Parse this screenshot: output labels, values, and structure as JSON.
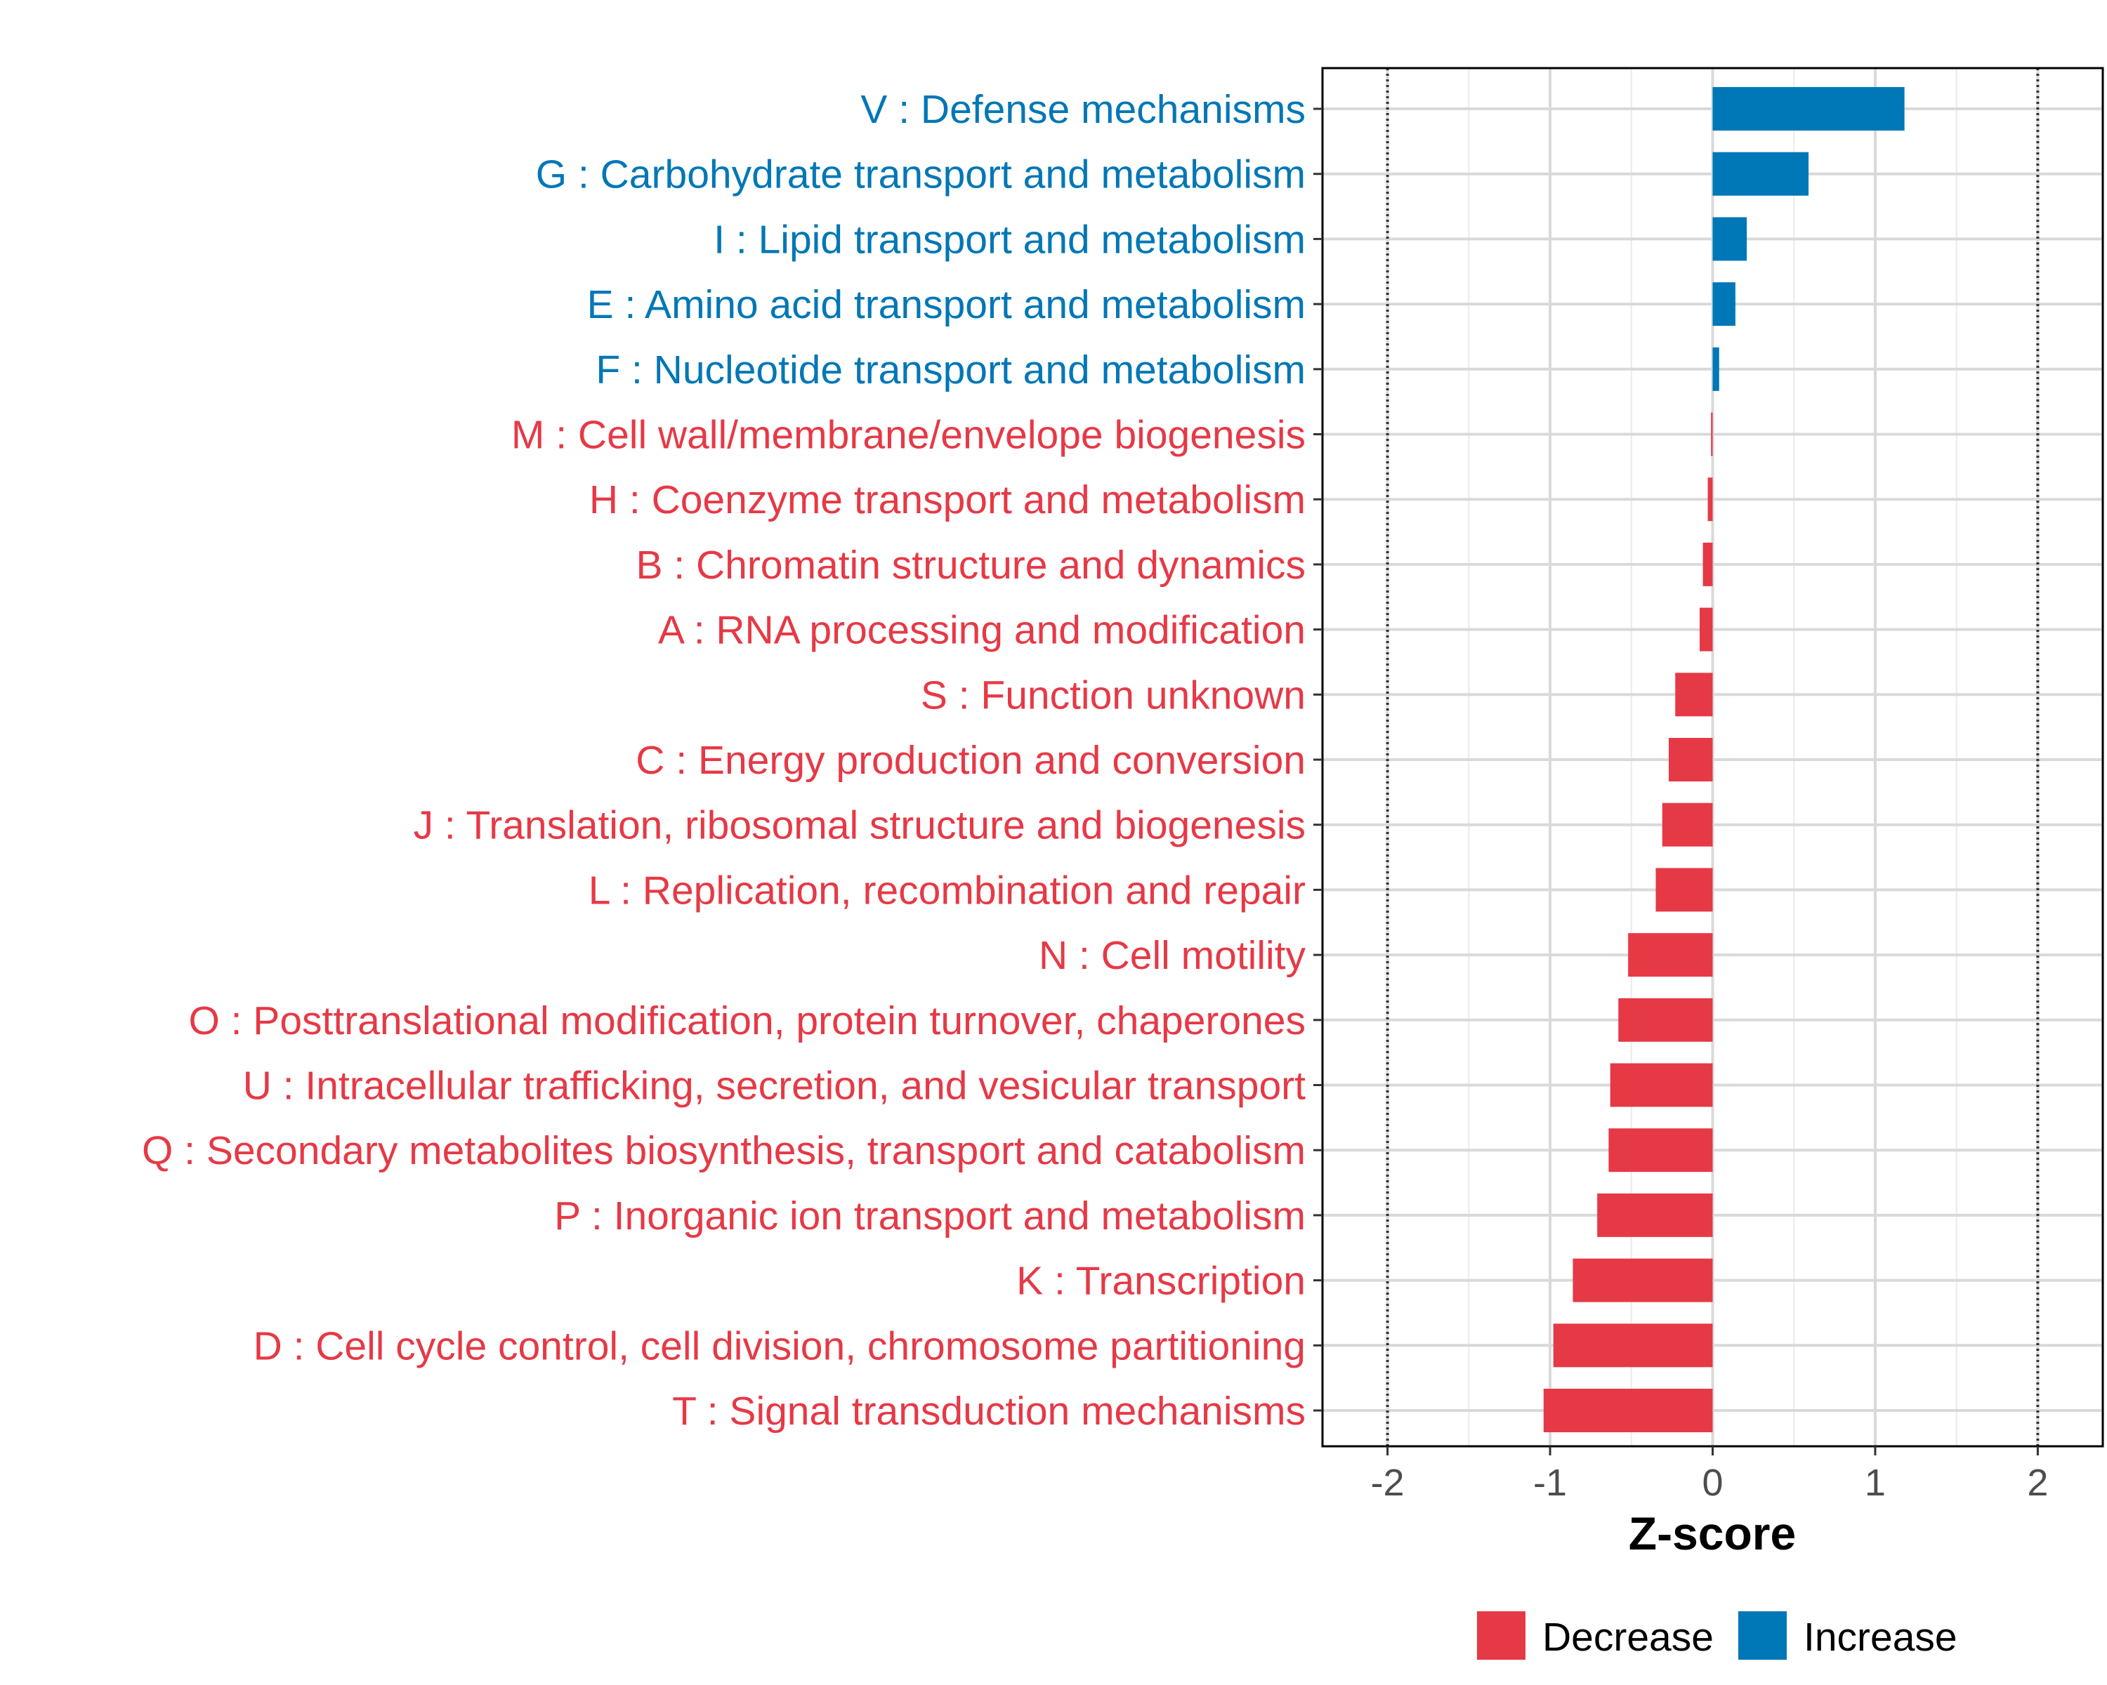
{
  "chart_data": {
    "type": "bar",
    "orientation": "horizontal",
    "title": "",
    "xlabel": "Z-score",
    "ylabel": "",
    "xlim": [
      -2.4,
      2.4
    ],
    "xticks": [
      -2,
      -1,
      0,
      1,
      2
    ],
    "xtick_labels": [
      "-2",
      "-1",
      "0",
      "1",
      "2"
    ],
    "reference_lines": [
      -2,
      2
    ],
    "grid": true,
    "categories": [
      "V : Defense mechanisms",
      "G : Carbohydrate transport and metabolism",
      "I : Lipid transport and metabolism",
      "E : Amino acid transport and metabolism",
      "F : Nucleotide transport and metabolism",
      "M : Cell wall/membrane/envelope biogenesis",
      "H : Coenzyme transport and metabolism",
      "B : Chromatin structure and dynamics",
      "A : RNA processing and modification",
      "S : Function unknown",
      "C : Energy production and conversion",
      "J : Translation, ribosomal structure and biogenesis",
      "L : Replication, recombination and repair",
      "N : Cell motility",
      "O : Posttranslational modification, protein turnover, chaperones",
      "U : Intracellular trafficking, secretion, and vesicular transport",
      "Q : Secondary metabolites biosynthesis, transport and catabolism",
      "P : Inorganic ion transport and metabolism",
      "K : Transcription",
      "D : Cell cycle control, cell division, chromosome partitioning",
      "T : Signal transduction mechanisms"
    ],
    "values": [
      1.18,
      0.59,
      0.21,
      0.14,
      0.04,
      -0.01,
      -0.03,
      -0.06,
      -0.08,
      -0.23,
      -0.27,
      -0.31,
      -0.35,
      -0.52,
      -0.58,
      -0.63,
      -0.64,
      -0.71,
      -0.86,
      -0.98,
      -1.04
    ],
    "groups": [
      "Increase",
      "Increase",
      "Increase",
      "Increase",
      "Increase",
      "Decrease",
      "Decrease",
      "Decrease",
      "Decrease",
      "Decrease",
      "Decrease",
      "Decrease",
      "Decrease",
      "Decrease",
      "Decrease",
      "Decrease",
      "Decrease",
      "Decrease",
      "Decrease",
      "Decrease",
      "Decrease"
    ],
    "legend": {
      "position": "bottom",
      "entries": [
        {
          "label": "Decrease",
          "color": "#E63946"
        },
        {
          "label": "Increase",
          "color": "#0077B6"
        }
      ]
    },
    "colors": {
      "Decrease": "#E63946",
      "Increase": "#0077B6"
    }
  }
}
